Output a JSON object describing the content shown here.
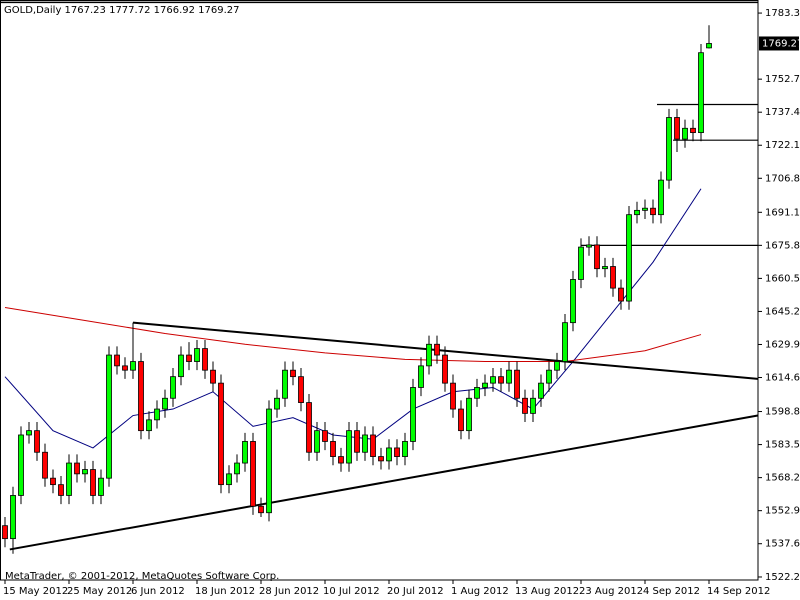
{
  "chart_data": {
    "type": "candlestick",
    "title": "GOLD,Daily  1767.23 1777.72 1766.92 1769.27",
    "footer": "MetaTrader, © 2001-2012, MetaQuotes Software Corp.",
    "categories": [
      "15 May 2012",
      null,
      null,
      null,
      null,
      null,
      null,
      null,
      "25 May 2012",
      null,
      null,
      null,
      null,
      null,
      null,
      null,
      "6 Jun 2012",
      null,
      null,
      null,
      null,
      null,
      null,
      null,
      "18 Jun 2012",
      null,
      null,
      null,
      null,
      null,
      null,
      null,
      "28 Jun 2012",
      null,
      null,
      null,
      null,
      null,
      null,
      null,
      "10 Jul 2012",
      null,
      null,
      null,
      null,
      null,
      null,
      null,
      "20 Jul 2012",
      null,
      null,
      null,
      null,
      null,
      null,
      null,
      "1 Aug 2012",
      null,
      null,
      null,
      null,
      null,
      null,
      null,
      "13 Aug 2012",
      null,
      null,
      null,
      null,
      null,
      null,
      null,
      "23 Aug 2012",
      null,
      null,
      null,
      null,
      null,
      null,
      null,
      "4 Sep 2012",
      null,
      null,
      null,
      null,
      null,
      null,
      null,
      "14 Sep 2012"
    ],
    "open": [
      1546,
      1540,
      1560,
      1588,
      1590,
      1580,
      1568,
      1565,
      1560,
      1575,
      1570,
      1572,
      1560,
      1568,
      1625,
      1620,
      1618,
      1622,
      1590,
      1595,
      1600,
      1605,
      1615,
      1625,
      1622,
      1628,
      1618,
      1612,
      1565,
      1570,
      1575,
      1585,
      1555,
      1552,
      1600,
      1605,
      1618,
      1615,
      1603,
      1580,
      1590,
      1585,
      1578,
      1575,
      1590,
      1580,
      1588,
      1578,
      1576,
      1582,
      1578,
      1585,
      1610,
      1620,
      1630,
      1625,
      1612,
      1600,
      1590,
      1605,
      1610,
      1612,
      1615,
      1612,
      1618,
      1605,
      1598,
      1605,
      1612,
      1618,
      1622,
      1640,
      1660,
      1675,
      1676,
      1665,
      1666,
      1656,
      1650,
      1690,
      1692,
      1693,
      1690,
      1706,
      1735,
      1725,
      1730,
      1728,
      1767.23
    ],
    "high": [
      1550,
      1564,
      1592,
      1594,
      1594,
      1584,
      1572,
      1569,
      1579,
      1579,
      1576,
      1576,
      1572,
      1629,
      1629,
      1624,
      1640,
      1626,
      1599,
      1604,
      1609,
      1619,
      1629,
      1631,
      1632,
      1632,
      1622,
      1616,
      1574,
      1579,
      1589,
      1589,
      1559,
      1604,
      1609,
      1622,
      1622,
      1619,
      1607,
      1594,
      1594,
      1589,
      1582,
      1594,
      1594,
      1592,
      1592,
      1582,
      1586,
      1586,
      1589,
      1614,
      1624,
      1634,
      1634,
      1629,
      1616,
      1604,
      1609,
      1614,
      1616,
      1619,
      1619,
      1622,
      1622,
      1609,
      1609,
      1616,
      1622,
      1626,
      1644,
      1664,
      1679,
      1680,
      1680,
      1670,
      1670,
      1660,
      1694,
      1696,
      1697,
      1697,
      1710,
      1739,
      1739,
      1734,
      1734,
      1769,
      1777.72
    ],
    "low": [
      1536,
      1533,
      1556,
      1584,
      1576,
      1564,
      1561,
      1556,
      1556,
      1566,
      1566,
      1556,
      1556,
      1564,
      1616,
      1614,
      1614,
      1586,
      1586,
      1591,
      1596,
      1601,
      1611,
      1618,
      1618,
      1614,
      1608,
      1561,
      1561,
      1566,
      1571,
      1551,
      1550,
      1548,
      1596,
      1601,
      1611,
      1599,
      1576,
      1576,
      1581,
      1574,
      1571,
      1571,
      1576,
      1576,
      1574,
      1572,
      1572,
      1574,
      1574,
      1581,
      1606,
      1616,
      1621,
      1608,
      1596,
      1586,
      1586,
      1601,
      1606,
      1608,
      1608,
      1608,
      1601,
      1594,
      1594,
      1601,
      1608,
      1614,
      1618,
      1636,
      1656,
      1671,
      1661,
      1661,
      1652,
      1646,
      1646,
      1686,
      1688,
      1686,
      1686,
      1702,
      1719,
      1721,
      1724,
      1724,
      1766.92
    ],
    "close": [
      1540,
      1560,
      1588,
      1590,
      1580,
      1568,
      1565,
      1560,
      1575,
      1570,
      1572,
      1560,
      1568,
      1625,
      1620,
      1618,
      1622,
      1590,
      1595,
      1600,
      1605,
      1615,
      1625,
      1622,
      1628,
      1618,
      1612,
      1565,
      1570,
      1575,
      1585,
      1555,
      1552,
      1600,
      1605,
      1618,
      1615,
      1603,
      1580,
      1590,
      1585,
      1578,
      1575,
      1590,
      1580,
      1588,
      1578,
      1576,
      1582,
      1578,
      1585,
      1610,
      1620,
      1630,
      1625,
      1612,
      1600,
      1590,
      1605,
      1610,
      1612,
      1615,
      1612,
      1618,
      1605,
      1598,
      1605,
      1612,
      1618,
      1622,
      1640,
      1660,
      1675,
      1676,
      1665,
      1666,
      1656,
      1650,
      1690,
      1692,
      1693,
      1690,
      1706,
      1735,
      1725,
      1730,
      1728,
      1765,
      1769.27
    ],
    "up_color": "#00ff00",
    "down_color": "#ff0000",
    "overlays": [
      {
        "color": "#000080",
        "x": [
          0,
          6,
          11,
          16,
          21,
          26,
          31,
          36,
          41,
          46,
          51,
          56,
          61,
          66,
          71,
          76,
          81,
          87
        ],
        "values": [
          1615,
          1590,
          1582,
          1597,
          1600,
          1608,
          1592,
          1596,
          1588,
          1586,
          1600,
          1608,
          1610,
          1600,
          1622,
          1645,
          1668,
          1702
        ]
      },
      {
        "color": "#cc0000",
        "x": [
          0,
          10,
          20,
          30,
          40,
          50,
          60,
          70,
          80,
          87
        ],
        "values": [
          1647,
          1641,
          1635,
          1630,
          1626,
          1623,
          1622,
          1622,
          1627,
          1634.5
        ]
      }
    ],
    "trendlines": [
      {
        "x": [
          16,
          94.1
        ],
        "values": [
          1640,
          1614
        ]
      },
      {
        "x": [
          0.6,
          94.1
        ],
        "values": [
          1535,
          1597
        ]
      }
    ],
    "levels": [
      {
        "from": -1,
        "value": 1788.3
      },
      {
        "from": 72,
        "value": 1675.8
      },
      {
        "from": 81.5,
        "value": 1741
      },
      {
        "from": 83.5,
        "value": 1724.5
      }
    ],
    "ylim": [
      1520.85,
      1789.4
    ],
    "yticks": [
      1522.25,
      1537.65,
      1552.95,
      1568.25,
      1583.55,
      1598.85,
      {
        "value": 1614.6,
        "label": "1614.60"
      },
      {
        "value": 1629.9,
        "label": "1629.90"
      },
      {
        "value": 1645.2,
        "label": "1645.20"
      },
      {
        "value": 1660.5,
        "label": "1660.50"
      },
      {
        "value": 1675.8,
        "label": "1675.80"
      },
      {
        "value": 1691.1,
        "label": "1691.10"
      },
      1706.85,
      1722.15,
      1737.45,
      1752.75,
      1783.35
    ]
  }
}
